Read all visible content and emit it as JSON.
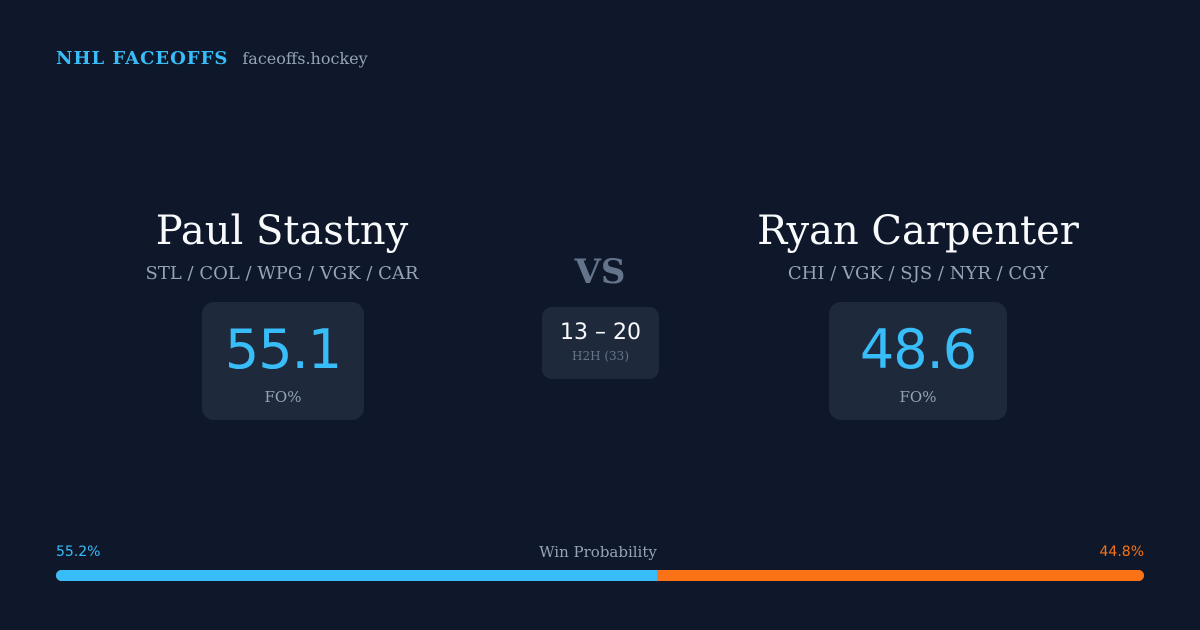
{
  "brand": {
    "name": "NHL FACEOFFS",
    "site": "faceoffs.hockey"
  },
  "player_left": {
    "name": "Paul Stastny",
    "teams": "STL / COL / WPG / VGK / CAR",
    "fo_pct": "55.1",
    "fo_label": "FO%"
  },
  "player_right": {
    "name": "Ryan Carpenter",
    "teams": "CHI / VGK / SJS / NYR / CGY",
    "fo_pct": "48.6",
    "fo_label": "FO%"
  },
  "vs_label": "VS",
  "h2h": {
    "score": "13 – 20",
    "label": "H2H (33)"
  },
  "win_probability": {
    "title": "Win Probability",
    "left_label": "55.2%",
    "right_label": "44.8%",
    "left_fraction": 0.552,
    "colors": {
      "left": "#38bdf8",
      "right": "#f97316"
    }
  }
}
